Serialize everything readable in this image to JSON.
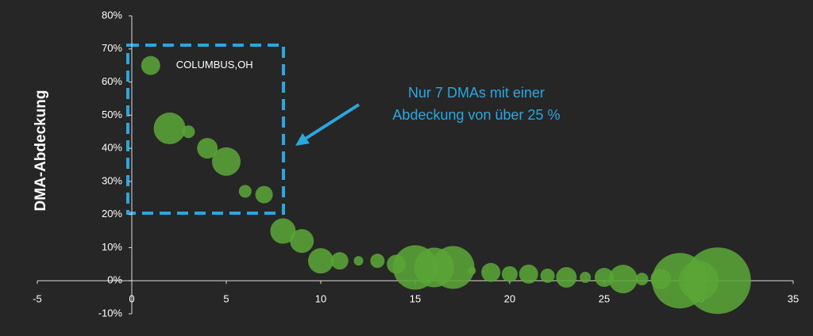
{
  "chart_data": {
    "type": "bubble",
    "y_label": "DMA-Abdeckung",
    "x": [
      1,
      2,
      3,
      4,
      5,
      6,
      7,
      8,
      9,
      10,
      11,
      12,
      13,
      14,
      15,
      16,
      17,
      18,
      19,
      20,
      21,
      22,
      23,
      24,
      25,
      26,
      27,
      28,
      29,
      30,
      31
    ],
    "series": [
      {
        "color": "#5aa537",
        "values": [
          65,
          46,
          45,
          40,
          36,
          27,
          26,
          15,
          12,
          6,
          6,
          6,
          6,
          5,
          4,
          4,
          4,
          3,
          2.5,
          2,
          2,
          1.5,
          1,
          1,
          1,
          0.5,
          0.5,
          0.5,
          0,
          0,
          0
        ],
        "sizes": [
          144,
          400,
          64,
          169,
          324,
          64,
          121,
          256,
          225,
          256,
          121,
          36,
          81,
          144,
          784,
          625,
          729,
          25,
          144,
          100,
          144,
          81,
          169,
          49,
          144,
          324,
          64,
          169,
          1225,
          625,
          1764
        ]
      }
    ],
    "xlim": [
      -5,
      35
    ],
    "xticks": [
      -5,
      0,
      5,
      10,
      15,
      20,
      25,
      30,
      35
    ],
    "ylim": [
      -10,
      80
    ],
    "yticks": [
      {
        "value": -10,
        "label": "-10%"
      },
      {
        "value": 0,
        "label": "0%"
      },
      {
        "value": 10,
        "label": "10%"
      },
      {
        "value": 20,
        "label": "20%"
      },
      {
        "value": 30,
        "label": "30%"
      },
      {
        "value": 40,
        "label": "40%"
      },
      {
        "value": 50,
        "label": "50%"
      },
      {
        "value": 60,
        "label": "60%"
      },
      {
        "value": 70,
        "label": "70%"
      },
      {
        "value": 80,
        "label": "80%"
      }
    ],
    "point_label": "COLUMBUS,OH",
    "callout": [
      "Nur 7 DMAs mit einer",
      "Abdeckung von über 25 %"
    ]
  }
}
